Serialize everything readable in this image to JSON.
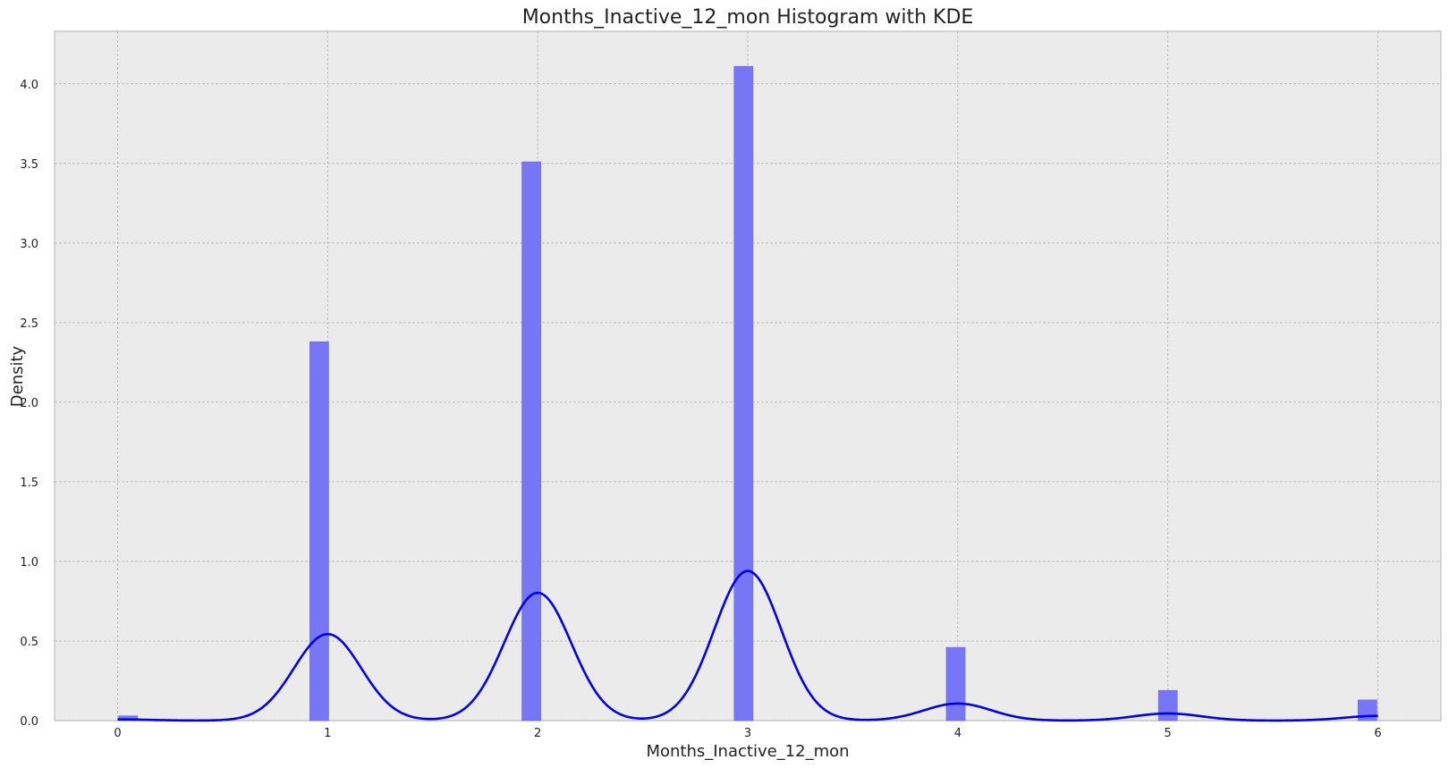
{
  "chart_data": {
    "type": "bar",
    "title": "Months_Inactive_12_mon Histogram with KDE",
    "xlabel": "Months_Inactive_12_mon",
    "ylabel": "Density",
    "xlim": [
      -0.3,
      6.3
    ],
    "ylim": [
      0,
      4.33
    ],
    "xticks": [
      "0",
      "1",
      "2",
      "3",
      "4",
      "5",
      "6"
    ],
    "yticks": [
      "0.0",
      "0.5",
      "1.0",
      "1.5",
      "2.0",
      "2.5",
      "3.0",
      "3.5",
      "4.0"
    ],
    "grid": true,
    "bar_width": 0.09,
    "bars": [
      {
        "x": 0.05,
        "value": 0.03
      },
      {
        "x": 0.96,
        "value": 2.38
      },
      {
        "x": 1.97,
        "value": 3.51
      },
      {
        "x": 2.98,
        "value": 4.11
      },
      {
        "x": 3.99,
        "value": 0.46
      },
      {
        "x": 5.0,
        "value": 0.19
      },
      {
        "x": 5.95,
        "value": 0.13
      }
    ],
    "kde": {
      "name": "KDE",
      "components": [
        {
          "mu": 0.0,
          "weight": 0.003
        },
        {
          "mu": 1.0,
          "weight": 0.218
        },
        {
          "mu": 2.0,
          "weight": 0.322
        },
        {
          "mu": 3.0,
          "weight": 0.377
        },
        {
          "mu": 4.0,
          "weight": 0.043
        },
        {
          "mu": 5.0,
          "weight": 0.018
        },
        {
          "mu": 6.0,
          "weight": 0.012
        }
      ],
      "bandwidth": 0.16,
      "x_range": [
        0,
        6
      ]
    },
    "colors": {
      "bar": "#7777f5",
      "bar_edge": "#6a6ae6",
      "kde": "#0000ee",
      "plot_bg": "#ebebeb",
      "grid": "#b4b4b4"
    }
  }
}
